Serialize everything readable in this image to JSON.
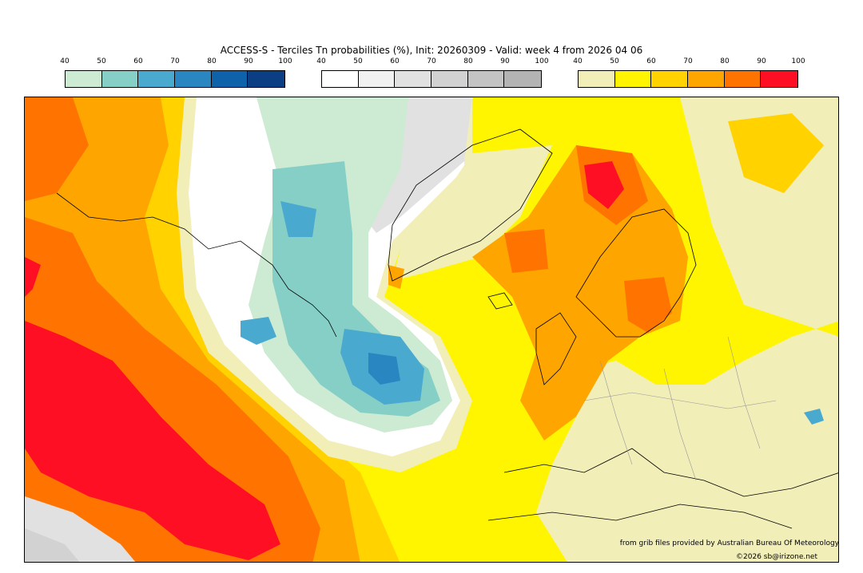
{
  "title": "ACCESS-S - Terciles Tn probabilities (%), Init: 20260309 - Valid: week 4 from 2026 04 06",
  "legends": [
    {
      "name": "below-normal-scale",
      "ticks": [
        "40",
        "50",
        "60",
        "70",
        "80",
        "90",
        "100"
      ],
      "colors": [
        "#cdebd2",
        "#86cfc7",
        "#49a9cf",
        "#2a86c1",
        "#0e62a9",
        "#0b3e83"
      ]
    },
    {
      "name": "near-normal-scale",
      "ticks": [
        "40",
        "50",
        "60",
        "70",
        "80",
        "90",
        "100"
      ],
      "colors": [
        "#ffffff",
        "#f1f1f1",
        "#e1e1e1",
        "#d2d2d2",
        "#c3c3c3",
        "#b3b3b3"
      ]
    },
    {
      "name": "above-normal-scale",
      "ticks": [
        "40",
        "50",
        "60",
        "70",
        "80",
        "90",
        "100"
      ],
      "colors": [
        "#f1eeb8",
        "#fff500",
        "#ffd200",
        "#ffa500",
        "#ff7400",
        "#ff0f24"
      ]
    }
  ],
  "credits": {
    "source": "from grib files provided by Australian Bureau Of Meteorology",
    "copyright": "©2026 sb@irizone.net"
  }
}
